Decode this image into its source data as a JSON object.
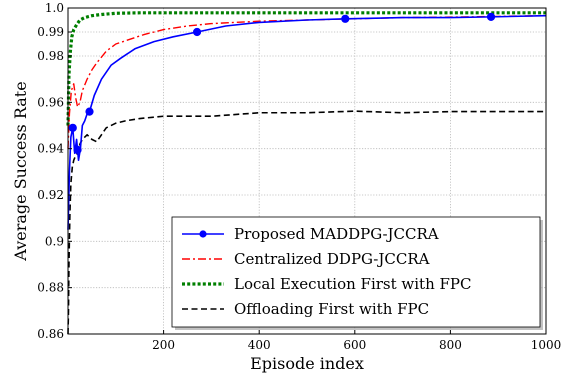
{
  "chart_data": {
    "type": "line",
    "title": "",
    "xlabel": "Episode index",
    "ylabel": "Average Success Rate",
    "xlim": [
      0,
      1000
    ],
    "ylim": [
      0.86,
      1.0
    ],
    "xticks": [
      200,
      400,
      600,
      800,
      1000
    ],
    "xtick_labels": [
      "200",
      "400",
      "600",
      "800",
      "1000"
    ],
    "yticks": [
      0.86,
      0.88,
      0.9,
      0.92,
      0.94,
      0.96,
      0.98,
      0.99,
      1.0
    ],
    "ytick_labels": [
      "0.86",
      "0.88",
      "0.9",
      "0.92",
      "0.94",
      "0.96",
      "0.98",
      "0.99",
      "1.0"
    ],
    "grid": true,
    "legend_position": "bottom-right",
    "series": [
      {
        "name": "Proposed MADDPG-JCCRA",
        "color": "#0000ff",
        "line_style": "solid",
        "marker": "circle",
        "marker_x": [
          10,
          20,
          45,
          270,
          580,
          885
        ],
        "x": [
          0,
          3,
          6,
          10,
          14,
          18,
          22,
          26,
          30,
          35,
          40,
          45,
          55,
          70,
          90,
          110,
          140,
          180,
          220,
          270,
          330,
          400,
          500,
          580,
          700,
          800,
          885,
          1000
        ],
        "y": [
          0.905,
          0.93,
          0.945,
          0.949,
          0.938,
          0.944,
          0.935,
          0.94,
          0.95,
          0.952,
          0.955,
          0.956,
          0.963,
          0.97,
          0.976,
          0.979,
          0.983,
          0.986,
          0.988,
          0.99,
          0.9925,
          0.994,
          0.995,
          0.9955,
          0.996,
          0.996,
          0.9963,
          0.9968
        ]
      },
      {
        "name": "Centralized DDPG-JCCRA",
        "color": "#ff0000",
        "line_style": "dashdot",
        "x": [
          0,
          3,
          7,
          12,
          16,
          20,
          25,
          30,
          40,
          50,
          60,
          80,
          100,
          130,
          160,
          200,
          250,
          300,
          400,
          500,
          600,
          700,
          800,
          900,
          1000
        ],
        "y": [
          0.94,
          0.955,
          0.965,
          0.968,
          0.962,
          0.958,
          0.96,
          0.965,
          0.97,
          0.974,
          0.977,
          0.982,
          0.985,
          0.987,
          0.989,
          0.991,
          0.9925,
          0.9935,
          0.9945,
          0.995,
          0.9955,
          0.996,
          0.9962,
          0.9965,
          0.9968
        ]
      },
      {
        "name": "Local Execution First with FPC",
        "color": "#007f00",
        "line_style": "dotted",
        "x": [
          0,
          2,
          5,
          8,
          12,
          18,
          25,
          35,
          50,
          70,
          100,
          150,
          200,
          300,
          500,
          1000
        ],
        "y": [
          0.95,
          0.972,
          0.982,
          0.988,
          0.991,
          0.993,
          0.995,
          0.996,
          0.9968,
          0.9973,
          0.9978,
          0.998,
          0.998,
          0.998,
          0.998,
          0.998
        ]
      },
      {
        "name": "Offloading First with FPC",
        "color": "#000000",
        "line_style": "dashed",
        "x": [
          0,
          1,
          2,
          4,
          6,
          9,
          12,
          16,
          20,
          25,
          30,
          40,
          50,
          60,
          70,
          80,
          100,
          120,
          150,
          200,
          300,
          400,
          500,
          600,
          700,
          800,
          1000
        ],
        "y": [
          0.86,
          0.87,
          0.89,
          0.912,
          0.925,
          0.932,
          0.935,
          0.937,
          0.938,
          0.942,
          0.944,
          0.946,
          0.944,
          0.943,
          0.946,
          0.949,
          0.951,
          0.952,
          0.953,
          0.954,
          0.954,
          0.9555,
          0.9555,
          0.9562,
          0.9555,
          0.956,
          0.956
        ]
      }
    ]
  }
}
